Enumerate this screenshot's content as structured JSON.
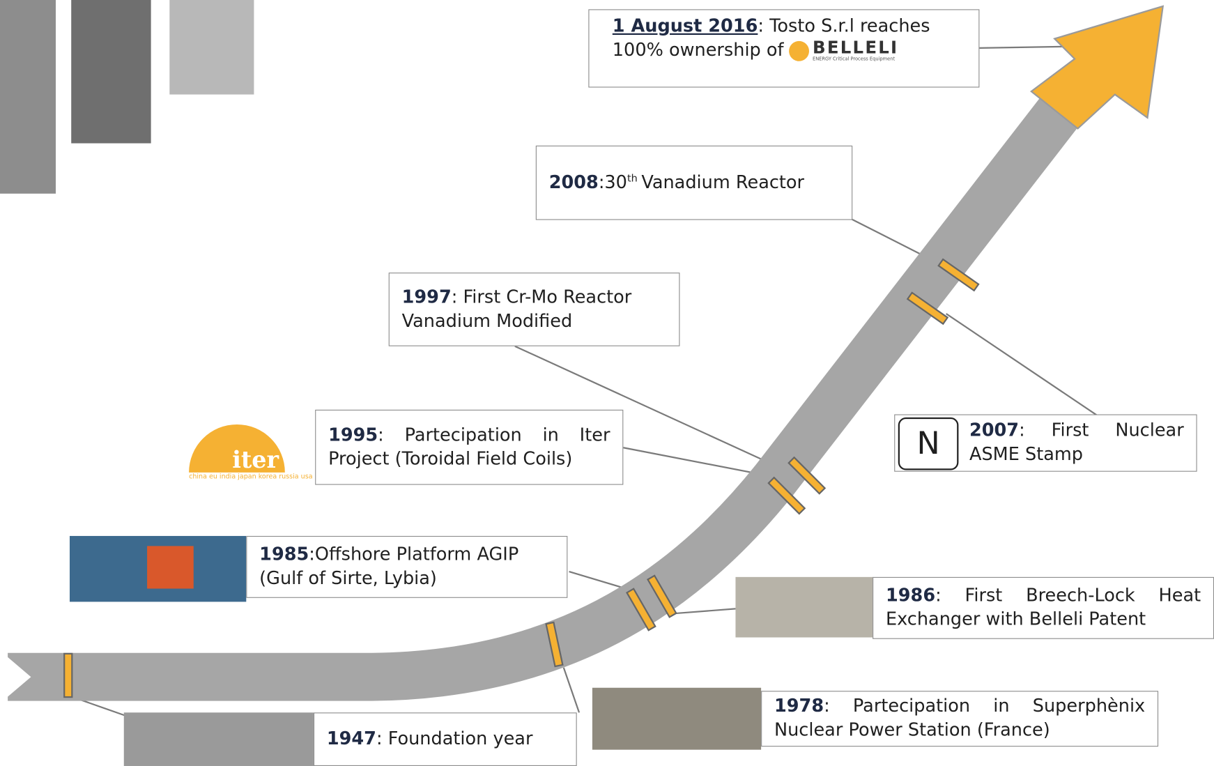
{
  "events": [
    {
      "date": "1 August 2016",
      "text": ": Tosto S.r.l reaches 100% ownership of",
      "logo": {
        "name": "BELLELI",
        "tagline": "ENERGY Critical Process Equipment"
      }
    },
    {
      "year": "2008",
      "text": ":30",
      "sup": "th",
      "text_after": "Vanadium Reactor"
    },
    {
      "year": "1997",
      "text": ": First Cr-Mo Reactor Vanadium Modified"
    },
    {
      "year": "1995",
      "text": ": Partecipation in Iter Project (Toroidal Field Coils)",
      "logo": {
        "name": "iter",
        "tagline": "china eu india japan korea russia usa"
      }
    },
    {
      "year": "2007",
      "text": ": First Nuclear ASME Stamp",
      "icon": "N"
    },
    {
      "year": "1985",
      "text": ":Offshore Platform AGIP (Gulf of Sirte, Lybia)"
    },
    {
      "year": "1986",
      "text": ": First Breech-Lock Heat Exchanger with Belleli Patent"
    },
    {
      "year": "1978",
      "text": ": Partecipation in Superphènix Nuclear Power Station (France)"
    },
    {
      "year": "1947",
      "text": ": Foundation year"
    }
  ]
}
